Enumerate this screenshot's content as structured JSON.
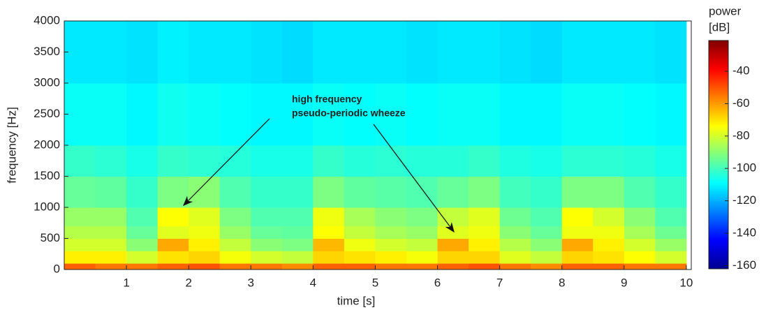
{
  "chart_data": {
    "type": "heatmap",
    "xlabel": "time [s]",
    "ylabel": "frequency [Hz]",
    "colorbar_title": [
      "power",
      "[dB]"
    ],
    "annotation": [
      "high frequency",
      "pseudo-periodic wheeze"
    ],
    "colormap": "jet",
    "x_bins": [
      0,
      0.5,
      1,
      1.5,
      2,
      2.5,
      3,
      3.5,
      4,
      4.5,
      5,
      5.5,
      6,
      6.5,
      7,
      7.5,
      8,
      8.5,
      9,
      9.5,
      10
    ],
    "y_bins": [
      0,
      100,
      300,
      500,
      700,
      1000,
      1500,
      2000,
      3000,
      4000
    ],
    "values": [
      [
        -52,
        -55,
        -55,
        -52,
        -50,
        -55,
        -55,
        -58,
        -52,
        -52,
        -55,
        -55,
        -52,
        -50,
        -55,
        -58,
        -52,
        -52,
        -55,
        -55
      ],
      [
        -72,
        -72,
        -80,
        -70,
        -68,
        -75,
        -80,
        -82,
        -68,
        -70,
        -72,
        -75,
        -68,
        -68,
        -78,
        -82,
        -68,
        -70,
        -74,
        -80
      ],
      [
        -80,
        -80,
        -90,
        -62,
        -72,
        -82,
        -90,
        -92,
        -64,
        -76,
        -80,
        -82,
        -62,
        -72,
        -84,
        -90,
        -62,
        -72,
        -80,
        -88
      ],
      [
        -84,
        -84,
        -95,
        -78,
        -76,
        -88,
        -95,
        -96,
        -74,
        -82,
        -86,
        -88,
        -78,
        -76,
        -90,
        -95,
        -76,
        -76,
        -86,
        -94
      ],
      [
        -88,
        -88,
        -98,
        -74,
        -78,
        -92,
        -98,
        -98,
        -76,
        -86,
        -90,
        -92,
        -82,
        -78,
        -94,
        -98,
        -74,
        -80,
        -90,
        -98
      ],
      [
        -95,
        -96,
        -102,
        -92,
        -90,
        -98,
        -102,
        -102,
        -92,
        -96,
        -97,
        -98,
        -95,
        -92,
        -100,
        -102,
        -92,
        -92,
        -98,
        -102
      ],
      [
        -102,
        -103,
        -106,
        -102,
        -103,
        -104,
        -106,
        -106,
        -102,
        -104,
        -103,
        -104,
        -104,
        -102,
        -105,
        -106,
        -103,
        -103,
        -104,
        -106
      ],
      [
        -108,
        -108,
        -110,
        -107,
        -108,
        -109,
        -110,
        -110,
        -108,
        -109,
        -108,
        -109,
        -108,
        -108,
        -110,
        -110,
        -108,
        -108,
        -109,
        -110
      ],
      [
        -112,
        -112,
        -113,
        -111,
        -112,
        -112,
        -113,
        -114,
        -112,
        -112,
        -112,
        -113,
        -112,
        -112,
        -113,
        -114,
        -112,
        -112,
        -112,
        -113
      ]
    ],
    "xlim": [
      0,
      10.08
    ],
    "ylim": [
      0,
      4000
    ],
    "xticks": [
      1,
      2,
      3,
      4,
      5,
      6,
      7,
      8,
      9,
      10
    ],
    "yticks": [
      0,
      500,
      1000,
      1500,
      2000,
      2500,
      3000,
      3500,
      4000
    ],
    "clim": [
      -162,
      -21
    ],
    "cticks": [
      -160,
      -140,
      -120,
      -100,
      -80,
      -60,
      -40
    ]
  }
}
